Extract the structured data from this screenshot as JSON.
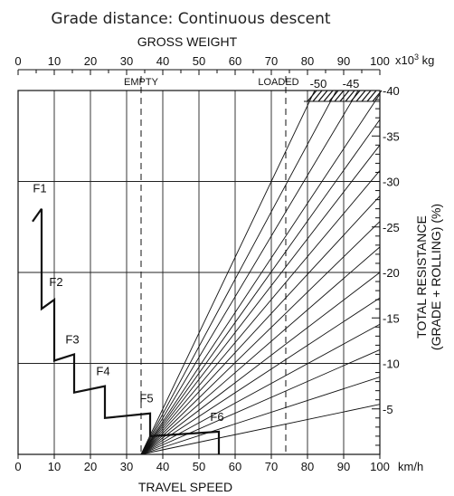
{
  "chart_data": {
    "type": "line",
    "title": "Grade distance: Continuous descent",
    "top_axis": {
      "label": "GROSS WEIGHT",
      "unit_prefix": "x10",
      "unit_exp": "3",
      "unit_suffix": " kg",
      "range": [
        0,
        100
      ],
      "ticks": [
        "0",
        "10",
        "20",
        "30",
        "40",
        "50",
        "60",
        "70",
        "80",
        "90",
        "100"
      ]
    },
    "bottom_axis": {
      "label": "TRAVEL SPEED",
      "unit": "km/h",
      "range": [
        0,
        100
      ],
      "ticks": [
        "0",
        "10",
        "20",
        "30",
        "40",
        "50",
        "60",
        "70",
        "80",
        "90",
        "100"
      ]
    },
    "right_axis": {
      "label_line1": "TOTAL RESISTANCE",
      "label_line2": "(GRADE + ROLLING) (%)",
      "range": [
        0,
        40
      ],
      "ticks": [
        {
          "value": 40,
          "label": "-40"
        },
        {
          "value": 35,
          "label": "-35"
        },
        {
          "value": 30,
          "label": "-30"
        },
        {
          "value": 25,
          "label": "-25"
        },
        {
          "value": 20,
          "label": "-20"
        },
        {
          "value": 15,
          "label": "-15"
        },
        {
          "value": 10,
          "label": "-10"
        },
        {
          "value": 5,
          "label": "-5"
        }
      ],
      "top_extra_labels": [
        {
          "x": 83,
          "label": "-50"
        },
        {
          "x": 92,
          "label": "-45"
        }
      ]
    },
    "reference_lines": [
      {
        "name": "empty",
        "label": "EMPTY",
        "weight": 34
      },
      {
        "name": "loaded",
        "label": "LOADED",
        "weight": 74
      }
    ],
    "resistance_lines": {
      "origin_x": 34,
      "origin_y": 0,
      "end_x": 100,
      "end_y": [
        5.5,
        8.5,
        11.5,
        14.3,
        17.2,
        20,
        22.8,
        25.6,
        28.4,
        31.2,
        34.0,
        36.8,
        39.6
      ],
      "top_x": [
        94,
        88,
        82
      ]
    },
    "gear_curve": {
      "points": [
        [
          6.5,
          27
        ],
        [
          6.5,
          16
        ],
        [
          10,
          17
        ],
        [
          10,
          10.3
        ],
        [
          15.5,
          11
        ],
        [
          15.5,
          6.8
        ],
        [
          24,
          7.5
        ],
        [
          24,
          4
        ],
        [
          36.5,
          4.5
        ],
        [
          36.5,
          2
        ],
        [
          55.5,
          2.5
        ],
        [
          55.5,
          0
        ]
      ],
      "gears": [
        {
          "label": "F1",
          "x": 6,
          "y": 28.8
        },
        {
          "label": "F2",
          "x": 10.5,
          "y": 18.5
        },
        {
          "label": "F3",
          "x": 15,
          "y": 12.2
        },
        {
          "label": "F4",
          "x": 23.5,
          "y": 8.7
        },
        {
          "label": "F5",
          "x": 35.5,
          "y": 5.7
        },
        {
          "label": "F6",
          "x": 55,
          "y": 3.7
        }
      ]
    },
    "grid": true
  }
}
